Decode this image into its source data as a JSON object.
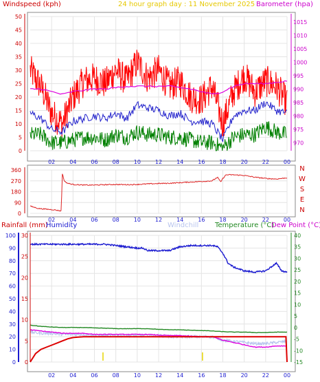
{
  "header": {
    "windspeed_title": "Windspeed (kph)",
    "date_title": "24 hour graph day : 11 November 2025",
    "barometer_title": "Barometer (hpa)"
  },
  "colors": {
    "wind": "#ff0000",
    "wind_avg": "#2222cc",
    "wind_min": "#008000",
    "baro": "#dd00dd",
    "dir": "#dd2222",
    "humidity": "#1a1ad0",
    "windchill": "#b8c4ee",
    "temperature": "#228822",
    "dewpoint": "#dd00dd",
    "rain": "#dd0000",
    "axis_red": "#cc0000",
    "axis_magenta": "#cc00cc",
    "axis_blue": "#1a1ad0",
    "axis_green": "#228822",
    "grid": "#e4e4e4"
  },
  "x_ticks": [
    "02",
    "04",
    "06",
    "08",
    "10",
    "12",
    "14",
    "16",
    "18",
    "20",
    "22",
    "00"
  ],
  "wind_panel": {
    "y_ticks_left": [
      "0",
      "5",
      "10",
      "15",
      "20",
      "25",
      "30",
      "35",
      "40",
      "45",
      "50"
    ],
    "y_ticks_right": [
      "970",
      "975",
      "980",
      "985",
      "990",
      "995",
      "1000",
      "1005",
      "1010",
      "1015"
    ]
  },
  "dir_panel": {
    "y_ticks_left": [
      "0",
      "90",
      "180",
      "270",
      "360"
    ],
    "compass": [
      "N",
      "W",
      "S",
      "E",
      "N"
    ]
  },
  "bottom_panel": {
    "labels": {
      "rainfall": "Rainfall (mm)",
      "humidity": "Humidity",
      "windchill": "Windchill",
      "temperature": "Temperature (°C)",
      "dewpoint": "Dew Point (°C)"
    },
    "hum_ticks": [
      "0",
      "10",
      "20",
      "30",
      "40",
      "50",
      "60",
      "70",
      "80",
      "90",
      "100"
    ],
    "rain_ticks": [
      "0",
      "5",
      "10",
      "15",
      "20",
      "25",
      "30"
    ],
    "temp_ticks": [
      "-15",
      "-10",
      "-5",
      "0",
      "5",
      "10",
      "15",
      "20",
      "25",
      "30",
      "35",
      "40"
    ]
  },
  "chart_data": [
    {
      "type": "line",
      "panel": "wind",
      "x_unit": "hour",
      "xlim": [
        0,
        24
      ],
      "ylim": [
        0,
        50
      ],
      "y2lim": [
        967,
        1017
      ],
      "series": [
        {
          "key": "gust",
          "hours": [
            0,
            1,
            2,
            3,
            4,
            5,
            6,
            7,
            8,
            9,
            10,
            11,
            12,
            13,
            14,
            15,
            16,
            17,
            18,
            19,
            20,
            21,
            22,
            23,
            24
          ],
          "values": [
            30,
            24,
            14,
            10,
            20,
            26,
            27,
            25,
            30,
            26,
            33,
            27,
            30,
            24,
            26,
            20,
            19,
            24,
            10,
            22,
            28,
            22,
            26,
            24,
            18
          ]
        },
        {
          "key": "avg",
          "hours": [
            0,
            1,
            2,
            3,
            4,
            5,
            6,
            7,
            8,
            9,
            10,
            11,
            12,
            13,
            14,
            15,
            16,
            17,
            18,
            19,
            20,
            21,
            22,
            23,
            24
          ],
          "values": [
            14,
            12,
            8,
            7,
            11,
            12,
            13,
            12,
            14,
            12,
            17,
            16,
            15,
            13,
            14,
            11,
            11,
            10,
            4,
            13,
            15,
            15,
            18,
            15,
            14
          ]
        },
        {
          "key": "lull",
          "hours": [
            0,
            1,
            2,
            3,
            4,
            5,
            6,
            7,
            8,
            9,
            10,
            11,
            12,
            13,
            14,
            15,
            16,
            17,
            18,
            19,
            20,
            21,
            22,
            23,
            24
          ],
          "values": [
            6,
            6,
            3,
            3,
            4,
            5,
            5,
            4,
            6,
            5,
            7,
            6,
            6,
            5,
            5,
            4,
            3,
            3,
            1,
            5,
            6,
            6,
            9,
            7,
            6
          ]
        },
        {
          "key": "barometer",
          "hours": [
            0,
            1,
            2,
            3,
            4,
            5,
            6,
            7,
            8,
            9,
            10,
            11,
            12,
            13,
            14,
            15,
            16,
            17,
            18,
            19,
            20,
            21,
            22,
            23,
            24
          ],
          "values": [
            990,
            990,
            989,
            988,
            989,
            989.5,
            990,
            990,
            990.5,
            991,
            991,
            991,
            991,
            991,
            990.5,
            990,
            989,
            988,
            989,
            991,
            992,
            992,
            992,
            992.5,
            993
          ]
        }
      ]
    },
    {
      "type": "line",
      "panel": "wind_direction",
      "x_unit": "hour",
      "xlim": [
        0,
        24
      ],
      "ylim": [
        0,
        360
      ],
      "series": [
        {
          "key": "direction",
          "hours": [
            0,
            0.8,
            1.5,
            2.2,
            2.9,
            3.0,
            3.2,
            3.5,
            4,
            5,
            6,
            7,
            8,
            9,
            10,
            11,
            12,
            13,
            14,
            15,
            16,
            17,
            17.5,
            17.8,
            18,
            18.3,
            18.6,
            19,
            20,
            21,
            22,
            23,
            24
          ],
          "values": [
            60,
            40,
            35,
            30,
            20,
            330,
            265,
            250,
            240,
            235,
            235,
            238,
            240,
            238,
            240,
            245,
            248,
            250,
            255,
            260,
            265,
            270,
            300,
            260,
            290,
            320,
            320,
            320,
            315,
            300,
            290,
            285,
            295
          ]
        }
      ]
    },
    {
      "type": "line",
      "panel": "temperature_humidity_rain",
      "x_unit": "hour",
      "xlim": [
        0,
        24
      ],
      "series": [
        {
          "key": "humidity",
          "axis": [
            0,
            100
          ],
          "hours": [
            0,
            1,
            2,
            3,
            4,
            5,
            6,
            7,
            8,
            9,
            10,
            10.5,
            11,
            12,
            13,
            14,
            15,
            16,
            17,
            17.5,
            18,
            18.5,
            19,
            20,
            21,
            22,
            23,
            23.5,
            24
          ],
          "values": [
            93,
            93,
            93,
            93,
            93,
            93,
            93,
            93,
            92,
            91,
            90,
            90,
            88,
            88,
            88,
            91,
            92,
            92,
            92,
            91,
            86,
            78,
            75,
            72,
            71,
            72,
            78,
            72,
            71
          ]
        },
        {
          "key": "windchill",
          "axis": [
            -15,
            40
          ],
          "hours": [
            0,
            1,
            2,
            3,
            4,
            5,
            6,
            7,
            8,
            9,
            10,
            11,
            12,
            13,
            14,
            15,
            16,
            17,
            18,
            19,
            20,
            21,
            22,
            23,
            24
          ],
          "values": [
            -2,
            -2.5,
            -2.5,
            -3,
            -3,
            -3,
            -3.5,
            -3.5,
            -3.5,
            -3.5,
            -3.5,
            -3.5,
            -3.5,
            -4,
            -4,
            -4,
            -4,
            -4,
            -5.5,
            -6,
            -6.5,
            -7,
            -7,
            -6.5,
            -6
          ]
        },
        {
          "key": "temperature",
          "axis": [
            -15,
            40
          ],
          "hours": [
            0,
            1,
            2,
            3,
            4,
            5,
            6,
            7,
            8,
            9,
            10,
            11,
            12,
            13,
            14,
            15,
            16,
            17,
            18,
            19,
            20,
            21,
            22,
            23,
            24
          ],
          "values": [
            1,
            0.5,
            0.2,
            0,
            0,
            0,
            -0.2,
            -0.3,
            -0.5,
            -0.5,
            -0.5,
            -0.5,
            -0.8,
            -1,
            -1,
            -1.2,
            -1.3,
            -1.5,
            -1.8,
            -2,
            -2,
            -2.2,
            -2.2,
            -2,
            -2
          ]
        },
        {
          "key": "dewpoint",
          "axis": [
            -15,
            40
          ],
          "hours": [
            0,
            1,
            2,
            3,
            4,
            5,
            6,
            7,
            8,
            9,
            10,
            11,
            12,
            13,
            14,
            15,
            16,
            17,
            18,
            19,
            20,
            21,
            22,
            23,
            24
          ],
          "values": [
            -1,
            -1.5,
            -2,
            -2.5,
            -2.5,
            -2.5,
            -3,
            -3,
            -3,
            -3,
            -3,
            -3,
            -3.3,
            -3.5,
            -3.5,
            -3.8,
            -4,
            -4,
            -5.5,
            -6.5,
            -7.5,
            -8.5,
            -8.5,
            -8,
            -8
          ]
        },
        {
          "key": "rainfall",
          "axis": [
            0,
            30
          ],
          "hours": [
            0,
            0.5,
            1,
            1.5,
            2,
            2.5,
            3,
            3.5,
            4,
            4.5,
            5,
            23.9,
            24
          ],
          "values": [
            0,
            2,
            3,
            3.5,
            4,
            4.5,
            5,
            5.5,
            5.8,
            5.9,
            6,
            6,
            0
          ]
        }
      ]
    }
  ]
}
